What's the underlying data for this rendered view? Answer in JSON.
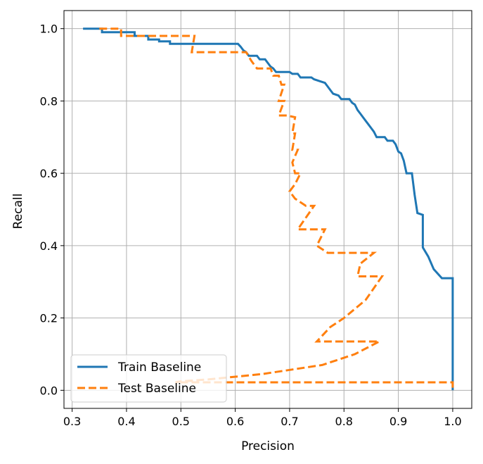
{
  "chart_data": {
    "type": "line",
    "xlabel": "Precision",
    "ylabel": "Recall",
    "xlim": [
      0.285,
      1.035
    ],
    "ylim": [
      -0.05,
      1.05
    ],
    "xticks": [
      0.3,
      0.4,
      0.5,
      0.6,
      0.7,
      0.8,
      0.9,
      1.0
    ],
    "xtick_labels": [
      "0.3",
      "0.4",
      "0.5",
      "0.6",
      "0.7",
      "0.8",
      "0.9",
      "1.0"
    ],
    "yticks": [
      0.0,
      0.2,
      0.4,
      0.6,
      0.8,
      1.0
    ],
    "ytick_labels": [
      "0.0",
      "0.2",
      "0.4",
      "0.6",
      "0.8",
      "1.0"
    ],
    "grid": true,
    "legend_position": "lower-left",
    "series": [
      {
        "name": "Train Baseline",
        "color": "#1f77b4",
        "style": "solid",
        "points": [
          [
            0.32,
            1.0
          ],
          [
            0.355,
            1.0
          ],
          [
            0.355,
            0.99
          ],
          [
            0.415,
            0.99
          ],
          [
            0.415,
            0.98
          ],
          [
            0.44,
            0.98
          ],
          [
            0.44,
            0.97
          ],
          [
            0.46,
            0.97
          ],
          [
            0.46,
            0.965
          ],
          [
            0.48,
            0.965
          ],
          [
            0.48,
            0.958
          ],
          [
            0.605,
            0.958
          ],
          [
            0.61,
            0.95
          ],
          [
            0.615,
            0.94
          ],
          [
            0.62,
            0.935
          ],
          [
            0.625,
            0.925
          ],
          [
            0.64,
            0.925
          ],
          [
            0.645,
            0.915
          ],
          [
            0.655,
            0.915
          ],
          [
            0.66,
            0.905
          ],
          [
            0.665,
            0.895
          ],
          [
            0.67,
            0.89
          ],
          [
            0.675,
            0.88
          ],
          [
            0.7,
            0.88
          ],
          [
            0.705,
            0.875
          ],
          [
            0.715,
            0.875
          ],
          [
            0.72,
            0.865
          ],
          [
            0.74,
            0.865
          ],
          [
            0.745,
            0.86
          ],
          [
            0.755,
            0.855
          ],
          [
            0.765,
            0.85
          ],
          [
            0.77,
            0.84
          ],
          [
            0.775,
            0.83
          ],
          [
            0.78,
            0.82
          ],
          [
            0.79,
            0.815
          ],
          [
            0.795,
            0.805
          ],
          [
            0.81,
            0.805
          ],
          [
            0.815,
            0.795
          ],
          [
            0.82,
            0.79
          ],
          [
            0.825,
            0.775
          ],
          [
            0.83,
            0.765
          ],
          [
            0.835,
            0.755
          ],
          [
            0.84,
            0.745
          ],
          [
            0.845,
            0.735
          ],
          [
            0.85,
            0.725
          ],
          [
            0.855,
            0.715
          ],
          [
            0.86,
            0.7
          ],
          [
            0.875,
            0.7
          ],
          [
            0.88,
            0.69
          ],
          [
            0.89,
            0.69
          ],
          [
            0.895,
            0.68
          ],
          [
            0.9,
            0.66
          ],
          [
            0.905,
            0.655
          ],
          [
            0.91,
            0.635
          ],
          [
            0.915,
            0.6
          ],
          [
            0.925,
            0.6
          ],
          [
            0.93,
            0.54
          ],
          [
            0.935,
            0.49
          ],
          [
            0.945,
            0.485
          ],
          [
            0.945,
            0.395
          ],
          [
            0.955,
            0.37
          ],
          [
            0.965,
            0.335
          ],
          [
            0.98,
            0.31
          ],
          [
            1.0,
            0.31
          ],
          [
            1.0,
            0.0
          ]
        ]
      },
      {
        "name": "Test Baseline",
        "color": "#ff7f0e",
        "style": "dashed",
        "points": [
          [
            0.35,
            1.0
          ],
          [
            0.39,
            1.0
          ],
          [
            0.39,
            0.98
          ],
          [
            0.525,
            0.98
          ],
          [
            0.52,
            0.935
          ],
          [
            0.62,
            0.935
          ],
          [
            0.63,
            0.91
          ],
          [
            0.64,
            0.89
          ],
          [
            0.665,
            0.89
          ],
          [
            0.67,
            0.87
          ],
          [
            0.68,
            0.87
          ],
          [
            0.685,
            0.845
          ],
          [
            0.69,
            0.845
          ],
          [
            0.68,
            0.8
          ],
          [
            0.69,
            0.8
          ],
          [
            0.68,
            0.76
          ],
          [
            0.695,
            0.76
          ],
          [
            0.71,
            0.755
          ],
          [
            0.705,
            0.71
          ],
          [
            0.71,
            0.71
          ],
          [
            0.705,
            0.665
          ],
          [
            0.715,
            0.665
          ],
          [
            0.705,
            0.63
          ],
          [
            0.71,
            0.6
          ],
          [
            0.72,
            0.6
          ],
          [
            0.71,
            0.57
          ],
          [
            0.7,
            0.55
          ],
          [
            0.71,
            0.53
          ],
          [
            0.73,
            0.51
          ],
          [
            0.745,
            0.51
          ],
          [
            0.715,
            0.445
          ],
          [
            0.765,
            0.445
          ],
          [
            0.75,
            0.4
          ],
          [
            0.77,
            0.38
          ],
          [
            0.855,
            0.38
          ],
          [
            0.83,
            0.35
          ],
          [
            0.825,
            0.315
          ],
          [
            0.87,
            0.315
          ],
          [
            0.84,
            0.25
          ],
          [
            0.8,
            0.2
          ],
          [
            0.775,
            0.175
          ],
          [
            0.75,
            0.135
          ],
          [
            0.865,
            0.135
          ],
          [
            0.82,
            0.1
          ],
          [
            0.76,
            0.07
          ],
          [
            0.65,
            0.045
          ],
          [
            0.55,
            0.03
          ],
          [
            0.5,
            0.025
          ],
          [
            0.49,
            0.022
          ],
          [
            1.0,
            0.022
          ],
          [
            1.0,
            0.0
          ]
        ]
      }
    ]
  }
}
